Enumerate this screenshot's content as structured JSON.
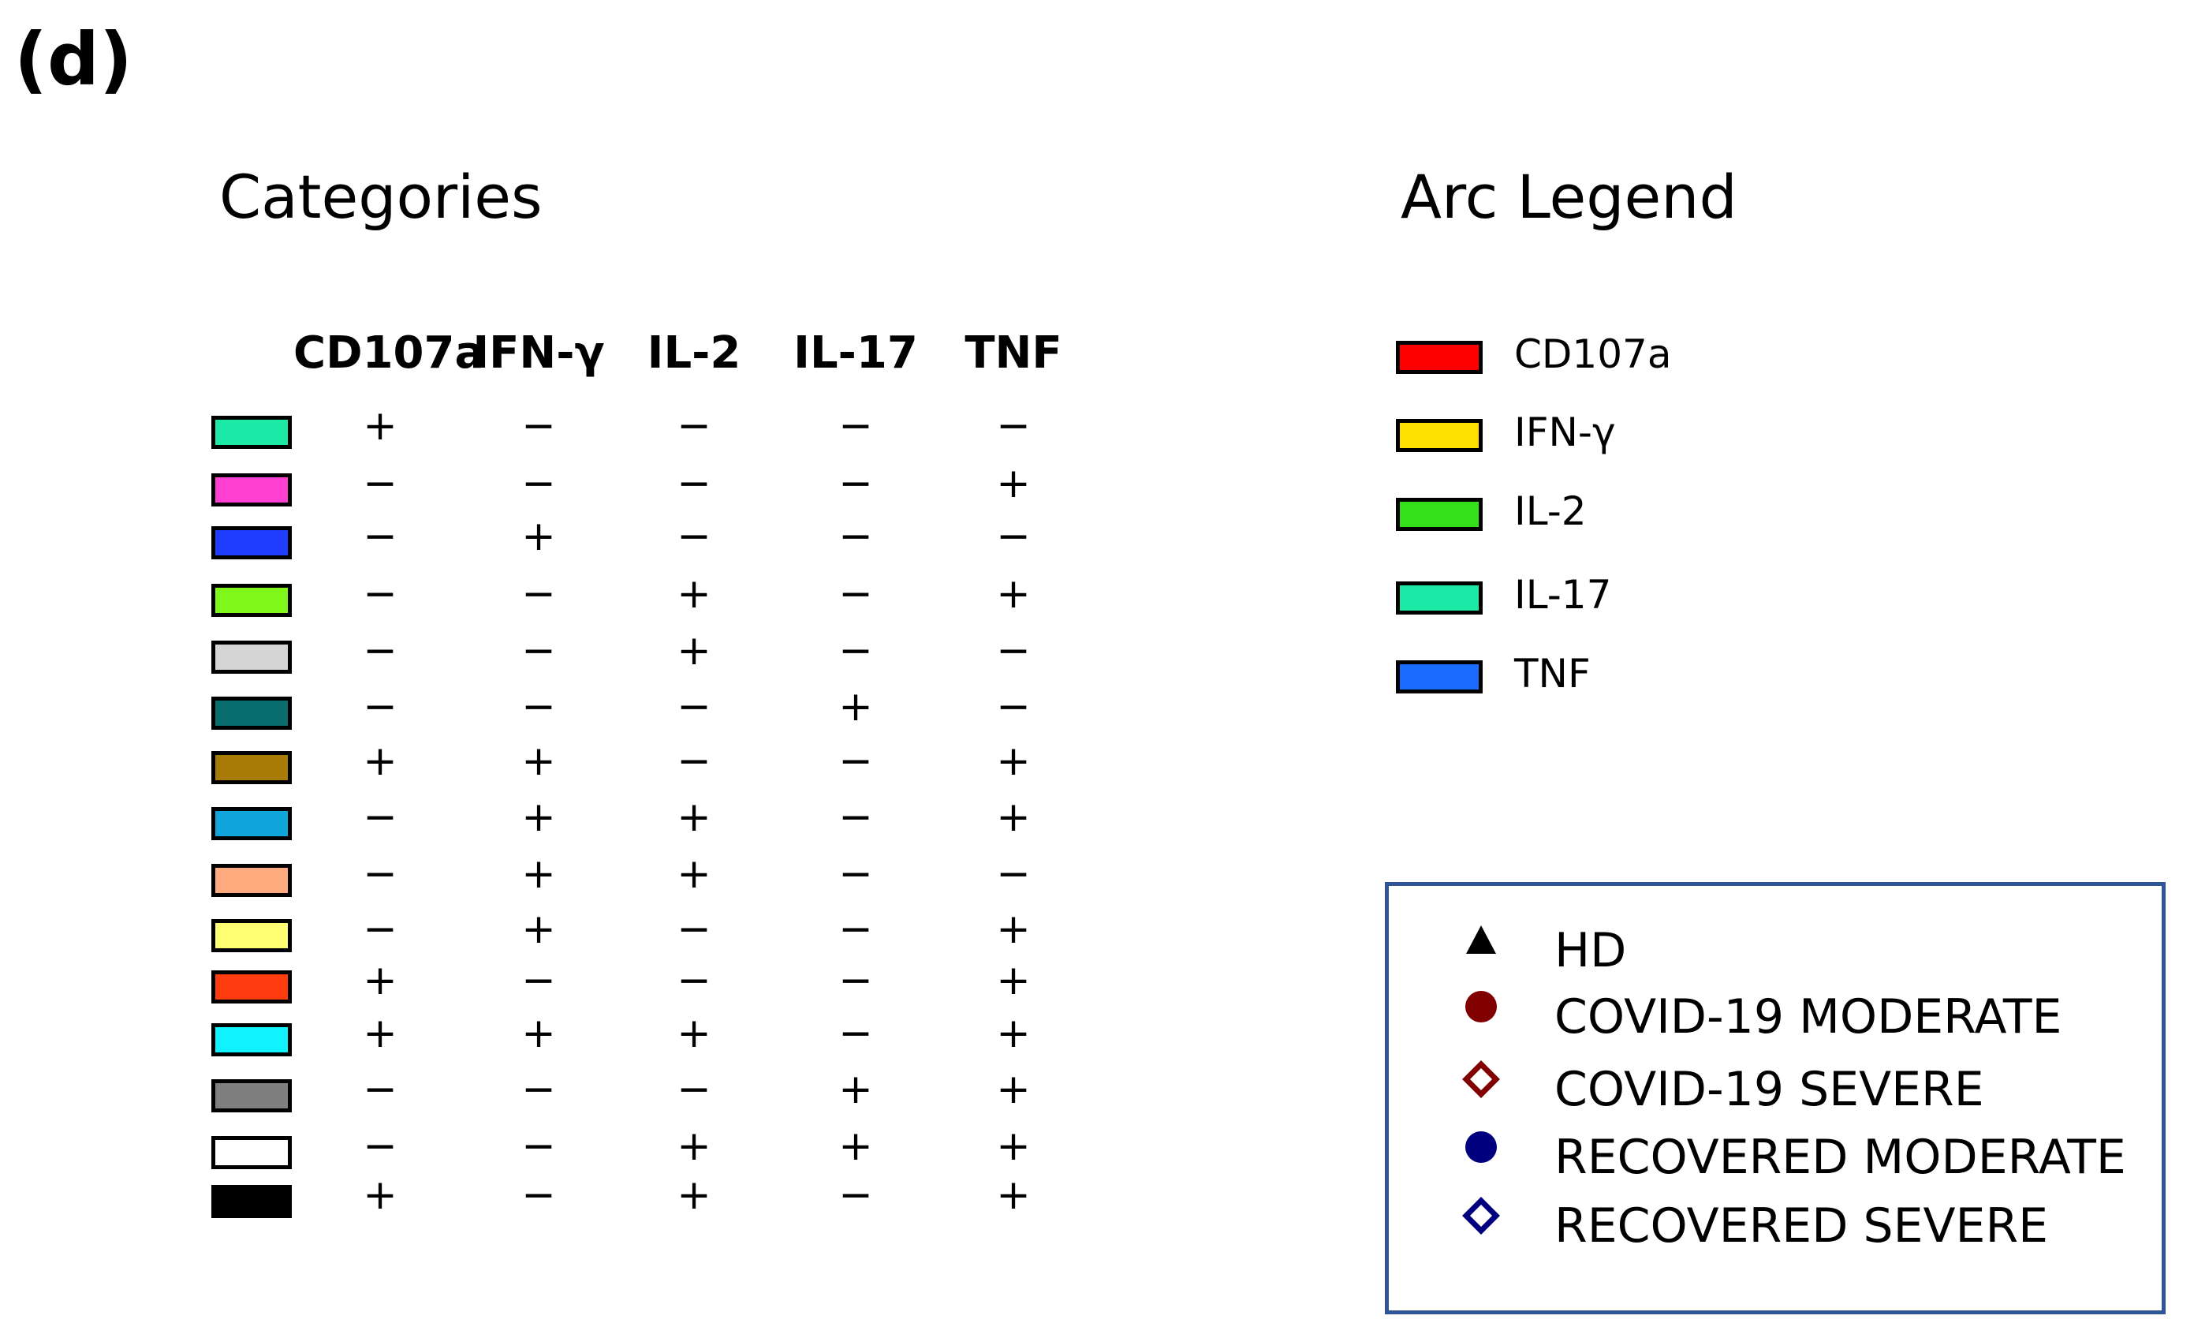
{
  "panel_label": "(d)",
  "categories": {
    "title": "Categories",
    "columns": [
      "CD107a",
      "IFN-γ",
      "IL-2",
      "IL-17",
      "TNF"
    ],
    "rows": [
      {
        "color": "#1de9a6",
        "signs": [
          "+",
          "−",
          "−",
          "−",
          "−"
        ]
      },
      {
        "color": "#ff3fd2",
        "signs": [
          "−",
          "−",
          "−",
          "−",
          "+"
        ]
      },
      {
        "color": "#1f3dff",
        "signs": [
          "−",
          "+",
          "−",
          "−",
          "−"
        ]
      },
      {
        "color": "#7ff71a",
        "signs": [
          "−",
          "−",
          "+",
          "−",
          "+"
        ]
      },
      {
        "color": "#d5d5d5",
        "signs": [
          "−",
          "−",
          "+",
          "−",
          "−"
        ]
      },
      {
        "color": "#0a6e6e",
        "signs": [
          "−",
          "−",
          "−",
          "+",
          "−"
        ]
      },
      {
        "color": "#a87a06",
        "signs": [
          "+",
          "+",
          "−",
          "−",
          "+"
        ]
      },
      {
        "color": "#10a6dc",
        "signs": [
          "−",
          "+",
          "+",
          "−",
          "+"
        ]
      },
      {
        "color": "#ffab7f",
        "signs": [
          "−",
          "+",
          "+",
          "−",
          "−"
        ]
      },
      {
        "color": "#fffd72",
        "signs": [
          "−",
          "+",
          "−",
          "−",
          "+"
        ]
      },
      {
        "color": "#ff3c10",
        "signs": [
          "+",
          "−",
          "−",
          "−",
          "+"
        ]
      },
      {
        "color": "#10f3ff",
        "signs": [
          "+",
          "+",
          "+",
          "−",
          "+"
        ]
      },
      {
        "color": "#7f7f7f",
        "signs": [
          "−",
          "−",
          "−",
          "+",
          "+"
        ]
      },
      {
        "color": "#ffffff",
        "signs": [
          "−",
          "−",
          "+",
          "+",
          "+"
        ]
      },
      {
        "color": "#000000",
        "signs": [
          "+",
          "−",
          "+",
          "−",
          "+"
        ]
      }
    ]
  },
  "arc_legend": {
    "title": "Arc Legend",
    "items": [
      {
        "label": "CD107a",
        "color": "#ff0000"
      },
      {
        "label": "IFN-γ",
        "color": "#ffe000"
      },
      {
        "label": "IL-2",
        "color": "#33e01a"
      },
      {
        "label": "IL-17",
        "color": "#1de9a6"
      },
      {
        "label": "TNF",
        "color": "#1a6cff"
      }
    ]
  },
  "groups": [
    {
      "label": "HD",
      "marker": "triangle-filled",
      "color": "#000000"
    },
    {
      "label": "COVID-19 MODERATE",
      "marker": "circle-filled",
      "color": "#800000"
    },
    {
      "label": "COVID-19 SEVERE",
      "marker": "diamond-open",
      "color": "#800000"
    },
    {
      "label": "RECOVERED MODERATE",
      "marker": "circle-filled",
      "color": "#00007f"
    },
    {
      "label": "RECOVERED SEVERE",
      "marker": "diamond-open",
      "color": "#00007f"
    }
  ]
}
